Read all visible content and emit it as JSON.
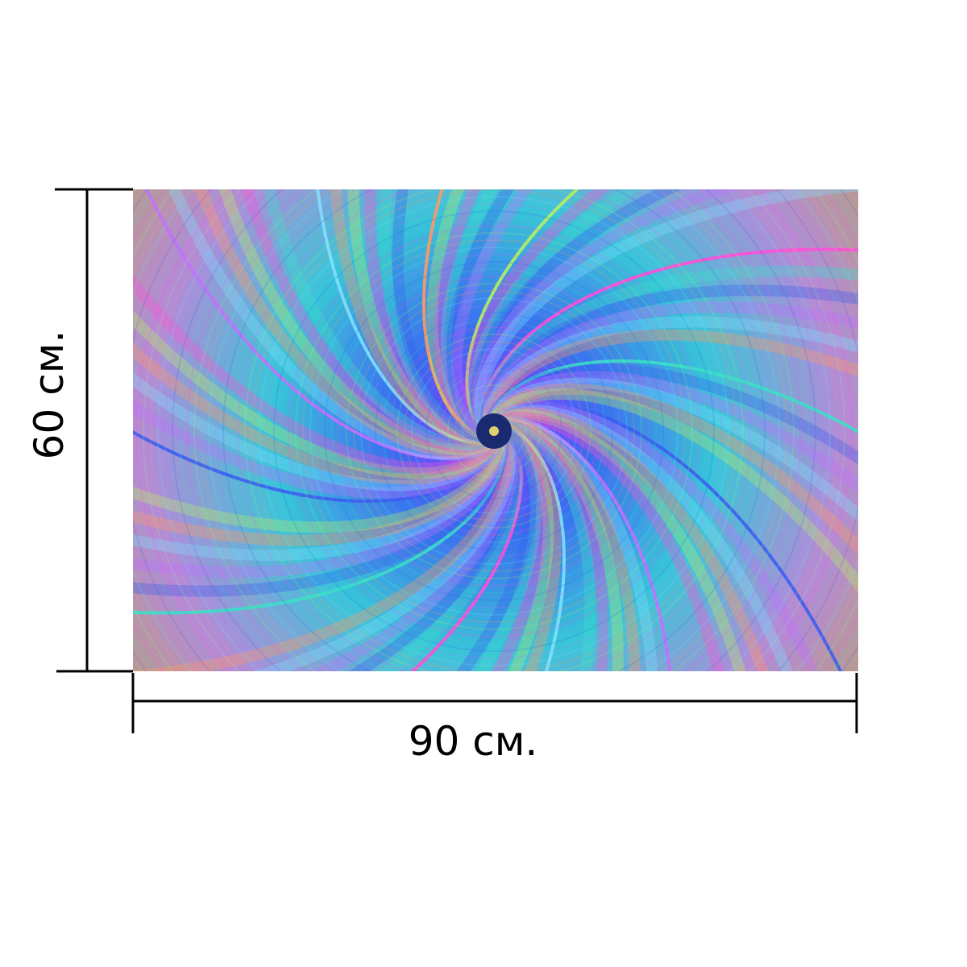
{
  "width_label": "90 см.",
  "height_label": "60 см."
}
